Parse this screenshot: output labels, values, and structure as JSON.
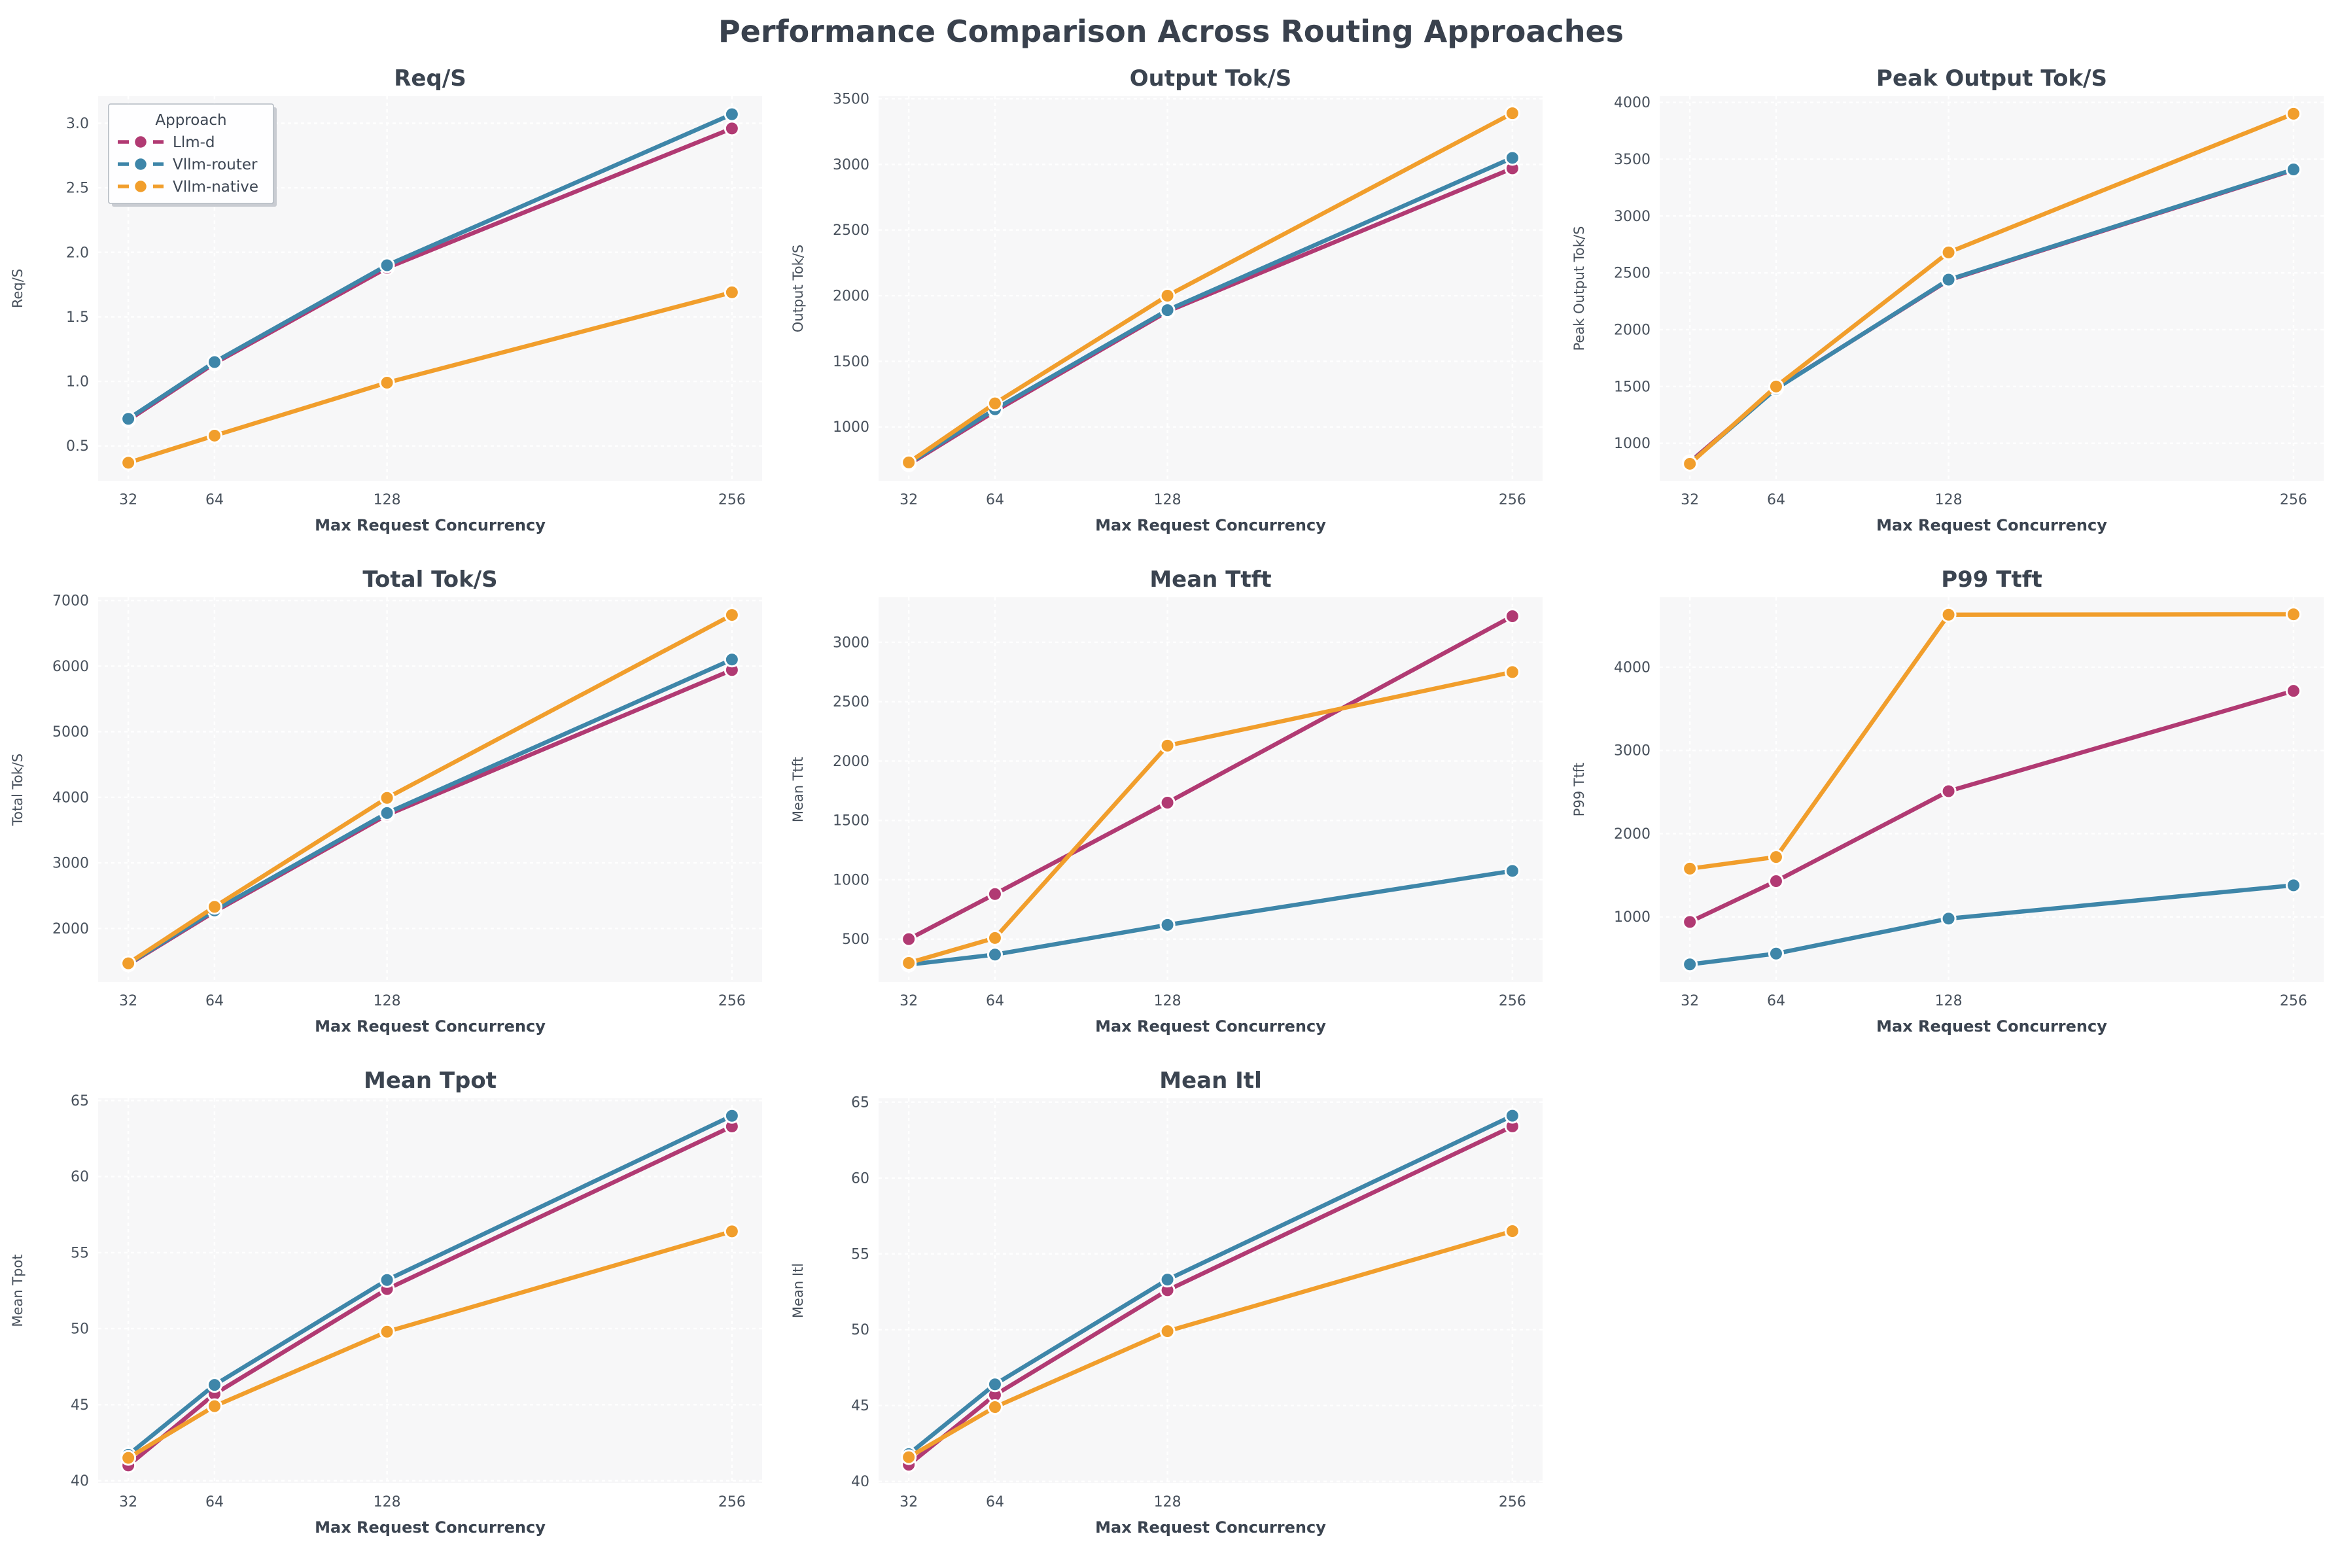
{
  "page_title": "Performance Comparison Across Routing Approaches",
  "style": {
    "plot_bg": "#f7f7f8",
    "grid_color": "#ffffff",
    "title_color": "#39414d",
    "text_color": "#48515c"
  },
  "legend": {
    "title": "Approach",
    "entries": [
      {
        "label": "Llm-d",
        "color": "#b13a73"
      },
      {
        "label": "Vllm-router",
        "color": "#3e86a9"
      },
      {
        "label": "Vllm-native",
        "color": "#f19e2c"
      }
    ]
  },
  "x_axis": {
    "label": "Max Request Concurrency",
    "ticks": [
      32,
      64,
      128,
      256
    ]
  },
  "chart_data": [
    {
      "type": "line",
      "title": "Req/S",
      "ylabel": "Req/S",
      "x": [
        32,
        64,
        128,
        256
      ],
      "yticks": [
        0.5,
        1.0,
        1.5,
        2.0,
        2.5,
        3.0
      ],
      "ylim": [
        0.23,
        3.21
      ],
      "tick_decimals": 1,
      "show_legend": true,
      "legend_position": "upper-left",
      "grid": true,
      "series": [
        {
          "name": "Llm-d",
          "values": [
            0.7,
            1.14,
            1.88,
            2.96
          ]
        },
        {
          "name": "Vllm-router",
          "values": [
            0.71,
            1.15,
            1.9,
            3.07
          ]
        },
        {
          "name": "Vllm-native",
          "values": [
            0.37,
            0.58,
            0.99,
            1.69
          ]
        }
      ]
    },
    {
      "type": "line",
      "title": "Output Tok/S",
      "ylabel": "Output Tok/S",
      "x": [
        32,
        64,
        128,
        256
      ],
      "yticks": [
        1000,
        1500,
        2000,
        2500,
        3000,
        3500
      ],
      "ylim": [
        590,
        3520
      ],
      "tick_decimals": 0,
      "show_legend": false,
      "grid": true,
      "series": [
        {
          "name": "Llm-d",
          "values": [
            715,
            1120,
            1880,
            2970
          ]
        },
        {
          "name": "Vllm-router",
          "values": [
            722,
            1135,
            1890,
            3050
          ]
        },
        {
          "name": "Vllm-native",
          "values": [
            730,
            1180,
            2000,
            3390
          ]
        }
      ]
    },
    {
      "type": "line",
      "title": "Peak Output Tok/S",
      "ylabel": "Peak Output Tok/S",
      "x": [
        32,
        64,
        128,
        256
      ],
      "yticks": [
        1000,
        1500,
        2000,
        2500,
        3000,
        3500,
        4000
      ],
      "ylim": [
        670,
        4055
      ],
      "tick_decimals": 0,
      "show_legend": false,
      "grid": true,
      "series": [
        {
          "name": "Llm-d",
          "values": [
            835,
            1483,
            2435,
            3405
          ]
        },
        {
          "name": "Vllm-router",
          "values": [
            825,
            1480,
            2440,
            3410
          ]
        },
        {
          "name": "Vllm-native",
          "values": [
            820,
            1500,
            2680,
            3900
          ]
        }
      ]
    },
    {
      "type": "line",
      "title": "Total Tok/S",
      "ylabel": "Total Tok/S",
      "x": [
        32,
        64,
        128,
        256
      ],
      "yticks": [
        2000,
        3000,
        4000,
        5000,
        6000,
        7000
      ],
      "ylim": [
        1185,
        7050
      ],
      "tick_decimals": 0,
      "show_legend": false,
      "grid": true,
      "series": [
        {
          "name": "Llm-d",
          "values": [
            1450,
            2255,
            3730,
            5940
          ]
        },
        {
          "name": "Vllm-router",
          "values": [
            1458,
            2275,
            3760,
            6100
          ]
        },
        {
          "name": "Vllm-native",
          "values": [
            1468,
            2330,
            3990,
            6780
          ]
        }
      ]
    },
    {
      "type": "line",
      "title": "Mean Ttft",
      "ylabel": "Mean Ttft",
      "x": [
        32,
        64,
        128,
        256
      ],
      "yticks": [
        500,
        1000,
        1500,
        2000,
        2500,
        3000
      ],
      "ylim": [
        140,
        3380
      ],
      "tick_decimals": 0,
      "show_legend": false,
      "grid": true,
      "series": [
        {
          "name": "Llm-d",
          "values": [
            500,
            880,
            1650,
            3220
          ]
        },
        {
          "name": "Vllm-router",
          "values": [
            285,
            370,
            620,
            1075
          ]
        },
        {
          "name": "Vllm-native",
          "values": [
            300,
            510,
            2130,
            2750
          ]
        }
      ]
    },
    {
      "type": "line",
      "title": "P99 Ttft",
      "ylabel": "P99 Ttft",
      "x": [
        32,
        64,
        128,
        256
      ],
      "yticks": [
        1000,
        2000,
        3000,
        4000
      ],
      "ylim": [
        220,
        4840
      ],
      "tick_decimals": 0,
      "show_legend": false,
      "grid": true,
      "series": [
        {
          "name": "Llm-d",
          "values": [
            940,
            1430,
            2510,
            3715
          ]
        },
        {
          "name": "Vllm-router",
          "values": [
            430,
            560,
            980,
            1380
          ]
        },
        {
          "name": "Vllm-native",
          "values": [
            1580,
            1720,
            4630,
            4635
          ]
        }
      ]
    },
    {
      "type": "line",
      "title": "Mean Tpot",
      "ylabel": "Mean Tpot",
      "x": [
        32,
        64,
        128,
        256
      ],
      "yticks": [
        40,
        45,
        50,
        55,
        60,
        65
      ],
      "ylim": [
        39.85,
        65.15
      ],
      "tick_decimals": 0,
      "show_legend": false,
      "grid": true,
      "series": [
        {
          "name": "Llm-d",
          "values": [
            41.0,
            45.7,
            52.6,
            63.3
          ]
        },
        {
          "name": "Vllm-router",
          "values": [
            41.7,
            46.3,
            53.2,
            64.0
          ]
        },
        {
          "name": "Vllm-native",
          "values": [
            41.5,
            44.9,
            49.8,
            56.4
          ]
        }
      ]
    },
    {
      "type": "line",
      "title": "Mean Itl",
      "ylabel": "Mean Itl",
      "x": [
        32,
        64,
        128,
        256
      ],
      "yticks": [
        40,
        45,
        50,
        55,
        60,
        65
      ],
      "ylim": [
        39.9,
        65.25
      ],
      "tick_decimals": 0,
      "show_legend": false,
      "grid": true,
      "series": [
        {
          "name": "Llm-d",
          "values": [
            41.1,
            45.7,
            52.6,
            63.4
          ]
        },
        {
          "name": "Vllm-router",
          "values": [
            41.8,
            46.4,
            53.3,
            64.1
          ]
        },
        {
          "name": "Vllm-native",
          "values": [
            41.6,
            44.9,
            49.9,
            56.5
          ]
        }
      ]
    }
  ]
}
